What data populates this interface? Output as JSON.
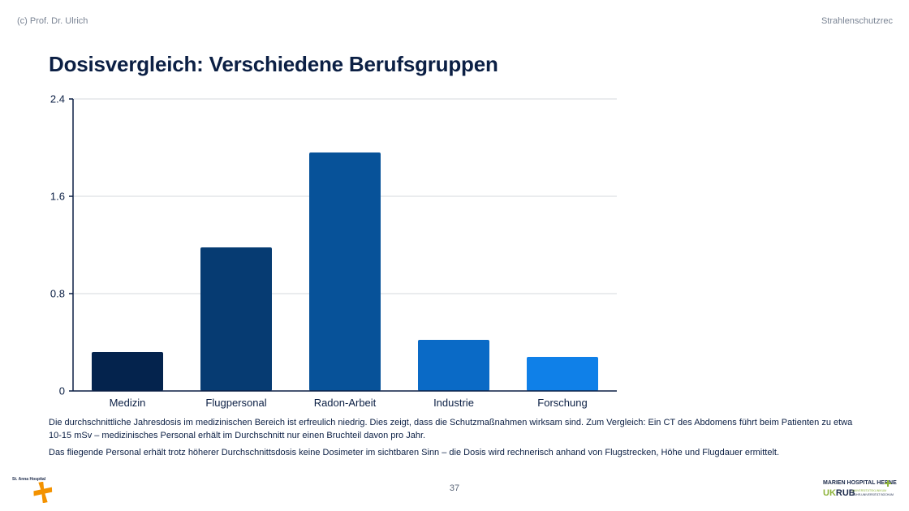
{
  "header": {
    "left_text": "(c) Prof. Dr. Ulrich",
    "right_text": "Strahlenschutzrec"
  },
  "title": "Dosisvergleich: Verschiedene Berufsgruppen",
  "chart_data": {
    "type": "bar",
    "title": "",
    "xlabel": "",
    "ylabel": "",
    "categories": [
      "Medizin",
      "Flugpersonal",
      "Radon-Arbeit",
      "Industrie",
      "Forschung"
    ],
    "values": [
      0.32,
      1.18,
      1.96,
      0.42,
      0.28
    ],
    "bar_colors": [
      "#04234d",
      "#063b72",
      "#075299",
      "#0a6ac6",
      "#0f80e8"
    ],
    "ylim": [
      0,
      2.4
    ],
    "yticks": [
      0,
      0.8,
      1.6,
      2.4
    ],
    "ytick_labels": [
      "0",
      "0.8",
      "1.6",
      "2.4"
    ],
    "grid": true,
    "legend": "none"
  },
  "body": {
    "paragraph_1": "Die durchschnittliche Jahresdosis im medizinischen Bereich ist erfreulich niedrig. Dies zeigt, dass die Schutzmaßnahmen wirksam sind. Zum Vergleich: Ein CT des Abdomens führt beim Patienten zu etwa 10-15 mSv – medizinisches Personal erhält im Durchschnitt nur einen Bruchteil davon pro Jahr.",
    "paragraph_2": "Das fliegende Personal erhält trotz höherer Durchschnittsdosis keine Dosimeter im sichtbaren Sinn – die Dosis wird rechnerisch anhand von Flugstrecken, Höhe und Flugdauer ermittelt."
  },
  "footer": {
    "page_number": "37",
    "logo_left_text": "St. Anna Hospital",
    "logo_right_line1": "MARIEN HOSPITAL HERNE",
    "logo_right_uk": "UK",
    "logo_right_rub": "RUB",
    "logo_right_small1": "UNIVERSITÄTSKLINIKUM",
    "logo_right_small2": "RUHR-UNIVERSITÄT BOCHUM"
  },
  "colors": {
    "text": "#0b1f44",
    "muted": "#7a8494",
    "grid": "#d4d8de",
    "axis": "#0b1f44",
    "logo_orange": "#f39200",
    "logo_green": "#8db33a"
  }
}
